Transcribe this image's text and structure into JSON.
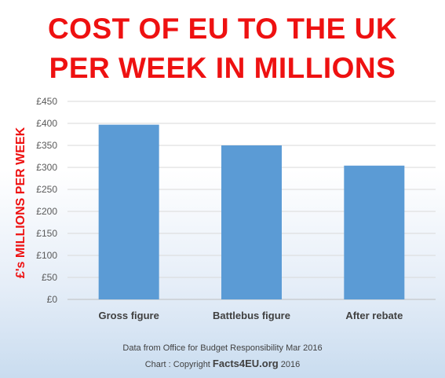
{
  "title": {
    "line1": "COST OF EU TO THE UK",
    "line2": "PER WEEK IN MILLIONS"
  },
  "footer": {
    "source": "Data from Office for Budget Responsibility Mar 2016",
    "copyright_prefix": "Chart : Copyright ",
    "brand": "Facts4EU.org",
    "year": " 2016"
  },
  "colors": {
    "title": "#ee1111",
    "bar": "#5b9bd5",
    "grid": "#d9d9d9",
    "text": "#404040"
  },
  "chart_data": {
    "type": "bar",
    "title": "COST OF EU TO THE UK PER WEEK IN MILLIONS",
    "xlabel": "",
    "ylabel": "£'s MILLIONS PER WEEK",
    "categories": [
      "Gross figure",
      "Battlebus figure",
      "After rebate"
    ],
    "values": [
      397,
      350,
      304
    ],
    "ylim": [
      0,
      450
    ],
    "yticks": [
      0,
      50,
      100,
      150,
      200,
      250,
      300,
      350,
      400,
      450
    ],
    "ytick_labels": [
      "£0",
      "£50",
      "£100",
      "£150",
      "£200",
      "£250",
      "£300",
      "£350",
      "£400",
      "£450"
    ],
    "grid": true,
    "legend": "none"
  }
}
